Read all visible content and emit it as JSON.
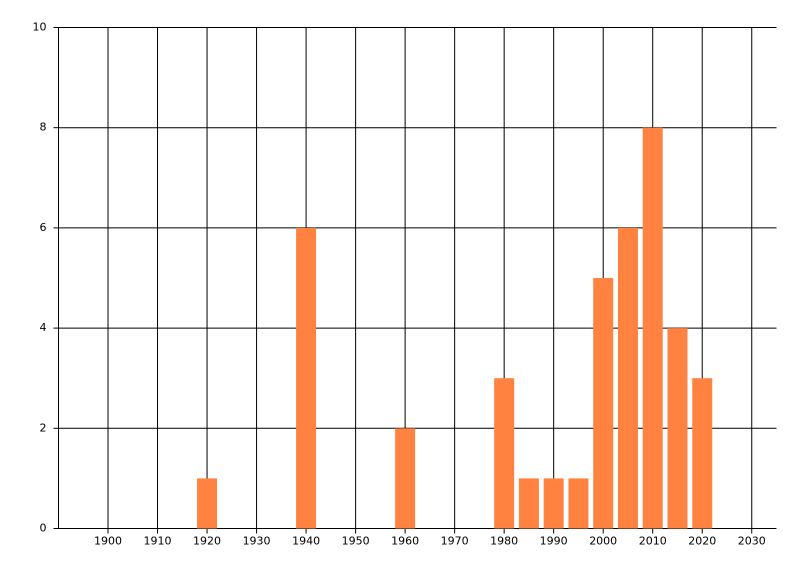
{
  "chart_data": {
    "type": "bar",
    "x": [
      1920,
      1940,
      1960,
      1980,
      1985,
      1990,
      1995,
      2000,
      2005,
      2010,
      2015,
      2020
    ],
    "values": [
      1,
      6,
      2,
      3,
      1,
      1,
      1,
      5,
      6,
      8,
      4,
      3
    ],
    "color": "#ff8240",
    "xlim": [
      1890,
      2035
    ],
    "xticks": [
      1900,
      1910,
      1920,
      1930,
      1940,
      1950,
      1960,
      1970,
      1980,
      1990,
      2000,
      2010,
      2020,
      2030
    ],
    "ylim": [
      0,
      10
    ],
    "yticks": [
      0,
      2,
      4,
      6,
      8,
      10
    ],
    "grid": true
  }
}
